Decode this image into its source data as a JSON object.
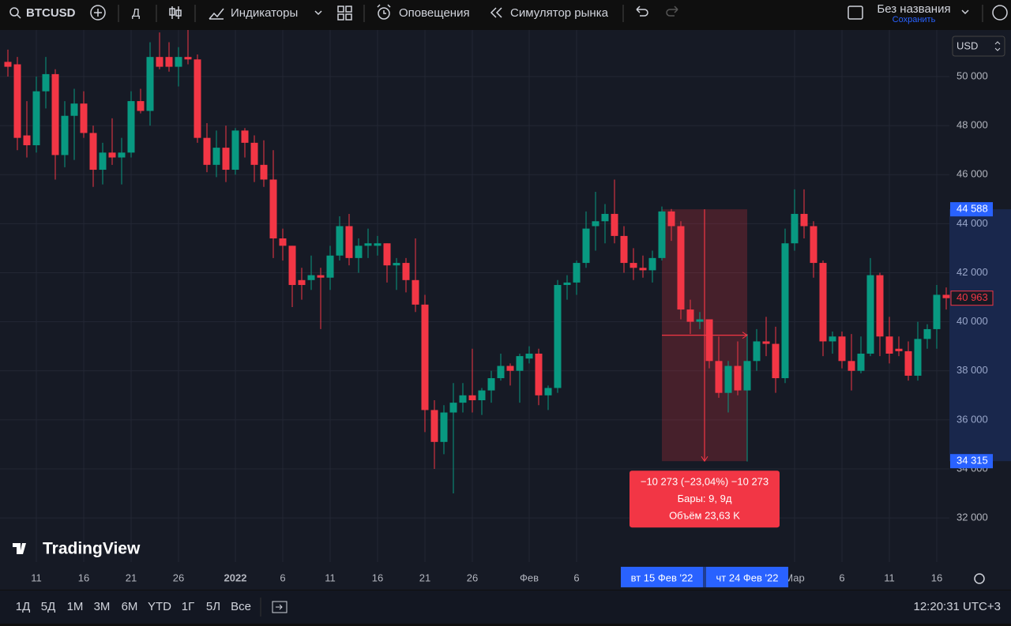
{
  "toolbar": {
    "symbol": "BTCUSD",
    "interval": "Д",
    "indicators": "Индикаторы",
    "alerts": "Оповещения",
    "replay": "Симулятор рынка",
    "layout_name": "Без названия",
    "save": "Сохранить"
  },
  "chart_data": {
    "type": "candlestick",
    "currency": "USD",
    "logo": "TradingView",
    "up_color": "#089981",
    "down_color": "#f23645",
    "grid": true,
    "categories": [
      null,
      null,
      null,
      "11",
      null,
      null,
      null,
      null,
      "16",
      null,
      null,
      null,
      null,
      "21",
      null,
      null,
      null,
      null,
      "26",
      null,
      null,
      null,
      null,
      null,
      "2022",
      null,
      null,
      null,
      null,
      "6",
      null,
      null,
      null,
      null,
      "11",
      null,
      null,
      null,
      null,
      "16",
      null,
      null,
      null,
      null,
      "21",
      null,
      null,
      null,
      null,
      "26",
      null,
      null,
      null,
      null,
      null,
      "Фев",
      null,
      null,
      null,
      null,
      "6",
      null,
      null,
      null,
      null,
      null,
      null,
      null,
      null,
      "вт 15 Фев '22",
      null,
      null,
      null,
      null,
      null,
      null,
      null,
      null,
      "чт 24 Фев '22",
      null,
      null,
      null,
      null,
      "Мар",
      null,
      null,
      null,
      null,
      "6",
      null,
      null,
      null,
      null,
      "11",
      null,
      null,
      null,
      null,
      "16",
      null
    ],
    "open": [
      50600,
      50500,
      47600,
      47200,
      49400,
      50100,
      46800,
      48400,
      48900,
      47700,
      46200,
      46900,
      46700,
      46900,
      49000,
      48600,
      50800,
      50800,
      50400,
      50800,
      50700,
      47500,
      46400,
      47100,
      46200,
      47800,
      47300,
      46400,
      45800,
      43400,
      43100,
      41700,
      41700,
      41900,
      41800,
      42700,
      43900,
      42600,
      43100,
      43100,
      43200,
      42300,
      42400,
      41700,
      40700,
      36400,
      35100,
      36300,
      36700,
      37000,
      36800,
      37200,
      37700,
      38200,
      38000,
      38500,
      38700,
      37000,
      37300,
      41500,
      41600,
      42400,
      43900,
      44100,
      44400,
      43500,
      42400,
      42200,
      42100,
      42600,
      44500,
      43900,
      40500,
      40000,
      40100,
      38400,
      37100,
      38200,
      37200,
      38400,
      39200,
      39100,
      37700,
      43200,
      44400,
      43900,
      42400,
      39200,
      39400,
      38400,
      38000,
      38700,
      41900,
      39400,
      38900,
      38800,
      37800,
      39300,
      39700,
      41100
    ],
    "high": [
      51100,
      50800,
      49000,
      50000,
      50800,
      50300,
      49000,
      49500,
      49400,
      48000,
      47300,
      48300,
      47500,
      49400,
      49500,
      51400,
      51800,
      51400,
      51200,
      51900,
      50900,
      48100,
      47800,
      48000,
      47900,
      47900,
      47600,
      47400,
      47000,
      43800,
      43100,
      42200,
      42700,
      42200,
      43100,
      44300,
      44400,
      43400,
      43800,
      43500,
      43200,
      42600,
      42600,
      43400,
      41100,
      36800,
      36600,
      37500,
      37500,
      38900,
      37300,
      38000,
      38700,
      38300,
      38700,
      39000,
      38900,
      37400,
      41700,
      41900,
      42500,
      44500,
      45300,
      44800,
      45800,
      43900,
      43000,
      42700,
      42900,
      44700,
      44600,
      44100,
      40900,
      40400,
      40100,
      39400,
      38400,
      39200,
      39500,
      39700,
      40200,
      39800,
      43800,
      45400,
      45400,
      44100,
      42500,
      39600,
      39600,
      39500,
      39400,
      42600,
      42000,
      40200,
      39400,
      39200,
      40000,
      39900,
      41500,
      41400
    ],
    "low": [
      50000,
      47000,
      46700,
      46900,
      48700,
      45800,
      46300,
      46600,
      47500,
      45500,
      45600,
      46400,
      45600,
      46700,
      48500,
      48000,
      50300,
      50200,
      49600,
      50500,
      47300,
      46100,
      45900,
      45700,
      46000,
      46700,
      45700,
      45500,
      42600,
      42500,
      40600,
      40900,
      41300,
      39700,
      41300,
      42500,
      42300,
      42000,
      42600,
      42700,
      41600,
      41300,
      41200,
      40400,
      35500,
      34000,
      34600,
      33000,
      36300,
      36300,
      36200,
      36700,
      37600,
      37400,
      36700,
      38300,
      36600,
      36400,
      37100,
      40900,
      41100,
      42200,
      42900,
      43200,
      43200,
      42000,
      41700,
      41800,
      41600,
      42500,
      43300,
      40100,
      39500,
      39700,
      38100,
      36900,
      36300,
      37000,
      34300,
      38000,
      38600,
      37100,
      37500,
      42900,
      43400,
      41800,
      38600,
      38700,
      38100,
      37200,
      37900,
      38600,
      38600,
      38300,
      38600,
      37600,
      37600,
      38900,
      38900,
      40500
    ],
    "close": [
      50400,
      47500,
      47200,
      49400,
      50100,
      46800,
      48400,
      48900,
      47700,
      46200,
      46900,
      46700,
      46900,
      49000,
      48600,
      50800,
      50400,
      50400,
      50800,
      50700,
      47500,
      46400,
      47100,
      46200,
      47800,
      47300,
      46400,
      45800,
      43400,
      43100,
      41500,
      41500,
      41900,
      41800,
      42700,
      43900,
      42600,
      43100,
      43200,
      43200,
      42300,
      42400,
      41700,
      40700,
      36400,
      35100,
      36300,
      36700,
      37000,
      36800,
      37200,
      37700,
      38200,
      38000,
      38600,
      38700,
      37000,
      37300,
      41500,
      41600,
      42400,
      43800,
      44100,
      44400,
      43500,
      42400,
      42200,
      42100,
      42600,
      44500,
      43900,
      40500,
      40000,
      40100,
      38400,
      37100,
      38200,
      37200,
      38400,
      39200,
      39100,
      37700,
      43200,
      44400,
      43900,
      42400,
      39200,
      39400,
      38400,
      38000,
      38700,
      41900,
      39400,
      38700,
      38800,
      37800,
      39300,
      39700,
      41100,
      40963
    ],
    "ylim": [
      30200,
      51900
    ],
    "yticks": [
      {
        "value": 32000,
        "label": "32 000"
      },
      {
        "value": 34000,
        "label": "34 000"
      },
      {
        "value": 36000,
        "label": "36 000"
      },
      {
        "value": 38000,
        "label": "38 000"
      },
      {
        "value": 40000,
        "label": "40 000"
      },
      {
        "value": 42000,
        "label": "42 000"
      },
      {
        "value": 44000,
        "label": "44 000"
      },
      {
        "value": 46000,
        "label": "46 000"
      },
      {
        "value": 48000,
        "label": "48 000"
      },
      {
        "value": 50000,
        "label": "50 000"
      }
    ],
    "last_price": {
      "value": 40963,
      "label": "40 963"
    },
    "measure": {
      "from": {
        "value": 44588,
        "label": "44 588"
      },
      "to": {
        "value": 34315,
        "label": "34 315"
      },
      "start": "вт 15 Фев '22",
      "end": "чт 24 Фев '22",
      "color": "#f23645",
      "texts": [
        "−10 273 (−23,04%) −10 273",
        "Бары: 9, 9д",
        "Объём 23,63 K"
      ]
    }
  },
  "bottom_bar": {
    "ranges": [
      "1Д",
      "5Д",
      "1М",
      "3М",
      "6М",
      "YTD",
      "1Г",
      "5Л",
      "Все"
    ],
    "clock": "12:20:31 UTC+3"
  }
}
